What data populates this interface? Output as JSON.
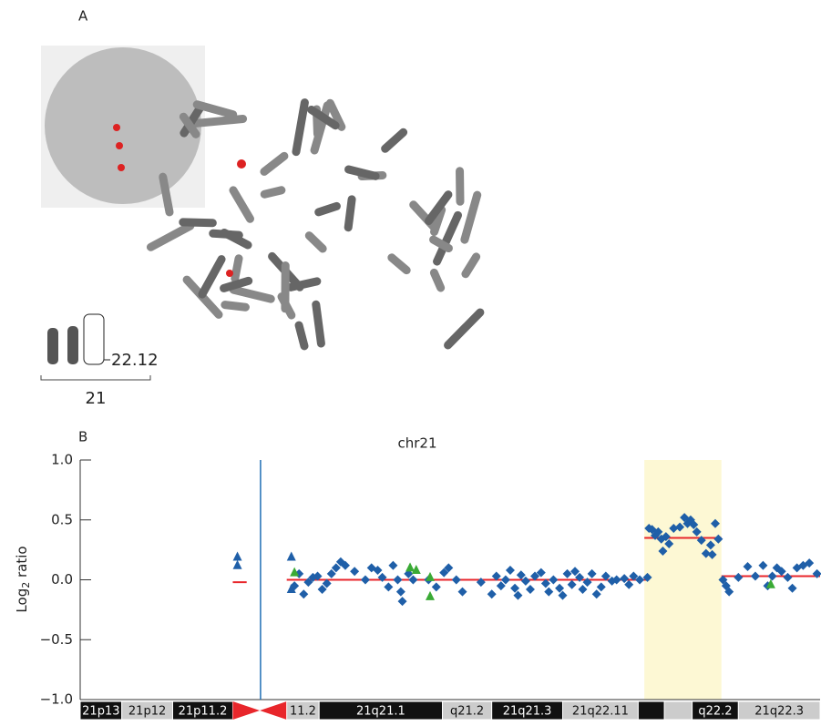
{
  "panel_a": {
    "label": "A",
    "band_label": "22.12",
    "chromosome_label": "21"
  },
  "chart_data": {
    "type": "scatter",
    "panel_label": "B",
    "title": "chr21",
    "ylabel": [
      "Log",
      "2",
      " ratio"
    ],
    "ylim": [
      -1,
      1
    ],
    "yticks": [
      {
        "value": -1,
        "label": "−1.0"
      },
      {
        "value": -0.5,
        "label": "−0.5"
      },
      {
        "value": 0,
        "label": "0.0"
      },
      {
        "value": 0.5,
        "label": "0.5"
      },
      {
        "value": 1,
        "label": "1.0"
      }
    ],
    "xlim": [
      0,
      48
    ],
    "highlight": {
      "x": [
        36.6,
        41.6
      ],
      "color": "#fdf8d4"
    },
    "marker_line": {
      "x": 11.7,
      "color": "#1f6fb5"
    },
    "segments": {
      "color": "#e8262b",
      "items": [
        {
          "x": [
            9.9,
            10.8
          ],
          "y": -0.02
        },
        {
          "x": [
            13.4,
            36.9
          ],
          "y": 0.0
        },
        {
          "x": [
            36.6,
            41.6
          ],
          "y": 0.35
        },
        {
          "x": [
            41.6,
            48
          ],
          "y": 0.03
        }
      ]
    },
    "series": [
      {
        "marker": "diamond",
        "color": "#1f5fa8",
        "x": [
          13.9,
          14.2,
          14.5,
          14.8,
          15.1,
          15.4,
          15.7,
          16.0,
          16.3,
          16.6,
          16.9,
          17.2,
          17.8,
          18.5,
          18.9,
          19.3,
          19.6,
          20.0,
          20.3,
          20.6,
          20.8,
          20.9,
          21.3,
          21.6,
          22.6,
          23.1,
          23.6,
          23.9,
          24.4,
          24.8,
          26.0,
          26.7,
          27.0,
          27.3,
          27.6,
          27.9,
          28.2,
          28.4,
          28.6,
          28.9,
          29.2,
          29.5,
          29.9,
          30.2,
          30.4,
          30.7,
          31.1,
          31.3,
          31.6,
          31.9,
          32.1,
          32.4,
          32.6,
          32.9,
          33.2,
          33.5,
          33.8,
          34.1,
          34.5,
          34.8,
          35.3,
          35.6,
          35.9,
          36.3,
          36.8,
          36.9,
          37.1,
          37.3,
          37.5,
          37.7,
          37.8,
          38.0,
          38.2,
          38.5,
          38.9,
          39.2,
          39.4,
          39.6,
          39.8,
          40.0,
          40.3,
          40.6,
          40.9,
          41.0,
          41.2,
          41.4,
          41.7,
          41.9,
          42.1,
          42.7,
          43.3,
          43.8,
          44.3,
          44.6,
          44.9,
          45.2,
          45.5,
          45.9,
          46.2,
          46.5,
          46.9,
          47.3,
          47.8
        ],
        "y": [
          -0.05,
          0.05,
          -0.12,
          -0.02,
          0.02,
          0.03,
          -0.08,
          -0.03,
          0.05,
          0.1,
          0.15,
          0.12,
          0.07,
          0.0,
          0.1,
          0.08,
          0.02,
          -0.06,
          0.12,
          0.0,
          -0.1,
          -0.18,
          0.05,
          0.0,
          0.0,
          -0.06,
          0.06,
          0.1,
          0.0,
          -0.1,
          -0.02,
          -0.12,
          0.03,
          -0.05,
          0.0,
          0.08,
          -0.07,
          -0.13,
          0.04,
          -0.01,
          -0.08,
          0.03,
          0.06,
          -0.03,
          -0.1,
          0.0,
          -0.07,
          -0.13,
          0.05,
          -0.04,
          0.07,
          0.02,
          -0.08,
          -0.02,
          0.05,
          -0.12,
          -0.06,
          0.03,
          -0.01,
          0.0,
          0.01,
          -0.04,
          0.03,
          0.0,
          0.02,
          0.43,
          0.42,
          0.37,
          0.4,
          0.34,
          0.24,
          0.36,
          0.3,
          0.43,
          0.44,
          0.52,
          0.47,
          0.5,
          0.46,
          0.4,
          0.33,
          0.22,
          0.29,
          0.21,
          0.47,
          0.34,
          0.0,
          -0.05,
          -0.1,
          0.02,
          0.11,
          0.03,
          0.12,
          -0.05,
          0.03,
          0.1,
          0.07,
          0.02,
          -0.07,
          0.1,
          0.12,
          0.14,
          0.05
        ]
      },
      {
        "marker": "triangle",
        "color": "#1f5fa8",
        "x": [
          10.2,
          10.2,
          13.7,
          13.7
        ],
        "y": [
          0.19,
          0.12,
          0.19,
          -0.08
        ]
      },
      {
        "marker": "triangle",
        "color": "#3aaa35",
        "x": [
          13.9,
          21.4,
          21.8,
          22.7,
          22.7,
          44.8
        ],
        "y": [
          0.06,
          0.1,
          0.08,
          0.02,
          -0.14,
          -0.04
        ]
      }
    ],
    "ideogram": [
      {
        "label": "21p13",
        "start": 0,
        "end": 2.7,
        "color": "#111"
      },
      {
        "label": "21p12",
        "start": 2.7,
        "end": 6.0,
        "color": "#ccc"
      },
      {
        "label": "21p11.2",
        "start": 6.0,
        "end": 9.9,
        "color": "#111"
      },
      {
        "label": null,
        "start": 9.9,
        "end": 13.4,
        "color": "#e8262b"
      },
      {
        "label": "11.2",
        "start": 13.4,
        "end": 15.5,
        "color": "#ccc"
      },
      {
        "label": "21q21.1",
        "start": 15.5,
        "end": 23.5,
        "color": "#111"
      },
      {
        "label": "q21.2",
        "start": 23.5,
        "end": 26.7,
        "color": "#ccc"
      },
      {
        "label": "21q21.3",
        "start": 26.7,
        "end": 31.3,
        "color": "#111"
      },
      {
        "label": "21q22.11",
        "start": 31.3,
        "end": 36.2,
        "color": "#ccc"
      },
      {
        "label": null,
        "start": 36.2,
        "end": 37.9,
        "color": "#111"
      },
      {
        "label": null,
        "start": 37.9,
        "end": 39.7,
        "color": "#ccc"
      },
      {
        "label": "q22.2",
        "start": 39.7,
        "end": 42.7,
        "color": "#111"
      },
      {
        "label": "21q22.3",
        "start": 42.7,
        "end": 48,
        "color": "#ccc"
      }
    ]
  }
}
